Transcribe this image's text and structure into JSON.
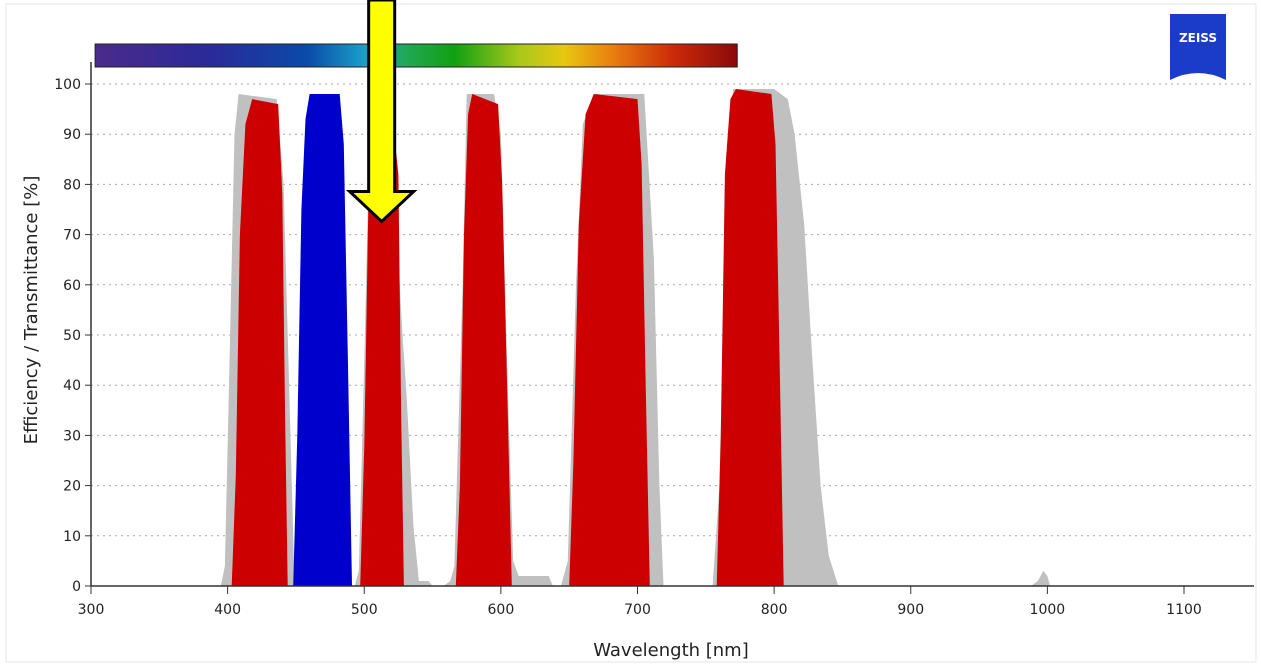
{
  "logo_text": "ZEISS",
  "chart_data": {
    "type": "area",
    "title": "",
    "xlabel": "Wavelength [nm]",
    "ylabel": "Efficiency / Transmittance [%]",
    "xlim": [
      300,
      1150
    ],
    "ylim": [
      0,
      100
    ],
    "xticks": [
      300,
      400,
      500,
      600,
      700,
      800,
      900,
      1000,
      1100
    ],
    "yticks": [
      0,
      10,
      20,
      30,
      40,
      50,
      60,
      70,
      80,
      90,
      100
    ],
    "grid": "horizontal dotted",
    "spectrum_bar": {
      "from_nm": 303,
      "to_nm": 773
    },
    "annotation": {
      "type": "arrow",
      "color": "#ffff00",
      "points_at_nm": 523,
      "points_at_value": 77
    },
    "series": [
      {
        "color": "#c0c0c0",
        "bands": [
          {
            "x": [
              395,
              398,
              401,
              405,
              408,
              436,
              441,
              445,
              449
            ],
            "y": [
              0,
              4,
              40,
              90,
              98,
              97,
              80,
              40,
              0
            ]
          },
          {
            "x": [
              493,
              496,
              500,
              504,
              508,
              515,
              523,
              528,
              531,
              536,
              540,
              547,
              550
            ],
            "y": [
              0,
              3,
              45,
              92,
              96,
              94,
              74,
              50,
              38,
              12,
              1,
              1,
              0
            ]
          },
          {
            "x": [
              558,
              563,
              566,
              572,
              575,
              595,
              600,
              605,
              609,
              613,
              635,
              638
            ],
            "y": [
              0,
              1,
              4,
              60,
              98,
              98,
              90,
              40,
              5,
              2,
              2,
              0
            ]
          },
          {
            "x": [
              644,
              649,
              655,
              660,
              668,
              705,
              712,
              716,
              719
            ],
            "y": [
              0,
              5,
              60,
              92,
              98,
              98,
              65,
              20,
              0
            ]
          },
          {
            "x": [
              755,
              760,
              765,
              770,
              800,
              810,
              815,
              822,
              828,
              834,
              840,
              847
            ],
            "y": [
              0,
              20,
              85,
              99,
              99,
              97,
              90,
              72,
              45,
              20,
              6,
              0
            ]
          },
          {
            "x": [
              988,
              993,
              997,
              1000,
              1002
            ],
            "y": [
              0,
              1,
              3,
              2,
              0
            ]
          }
        ]
      },
      {
        "color": "#cc0000",
        "bands": [
          {
            "x": [
              403,
              406,
              409,
              413,
              418,
              437,
              440,
              442,
              444
            ],
            "y": [
              0,
              22,
              70,
              92,
              97,
              96,
              78,
              35,
              0
            ]
          },
          {
            "x": [
              497,
              500,
              503,
              507,
              511,
              520,
              525,
              527,
              529
            ],
            "y": [
              0,
              28,
              75,
              93,
              96,
              95,
              82,
              35,
              0
            ]
          },
          {
            "x": [
              567,
              570,
              573,
              576,
              579,
              598,
              601,
              605,
              608
            ],
            "y": [
              0,
              20,
              70,
              94,
              98,
              96,
              80,
              35,
              0
            ]
          },
          {
            "x": [
              650,
              653,
              657,
              662,
              668,
              700,
              703,
              706,
              709
            ],
            "y": [
              0,
              24,
              72,
              94,
              98,
              97,
              84,
              40,
              0
            ]
          },
          {
            "x": [
              758,
              761,
              764,
              768,
              772,
              798,
              801,
              804,
              807
            ],
            "y": [
              0,
              30,
              82,
              97,
              99,
              98,
              88,
              45,
              0
            ]
          }
        ]
      },
      {
        "color": "#0000cc",
        "bands": [
          {
            "x": [
              448,
              451,
              454,
              457,
              460,
              482,
              485,
              488,
              491
            ],
            "y": [
              0,
              30,
              75,
              93,
              98,
              98,
              88,
              45,
              0
            ]
          }
        ]
      }
    ]
  }
}
